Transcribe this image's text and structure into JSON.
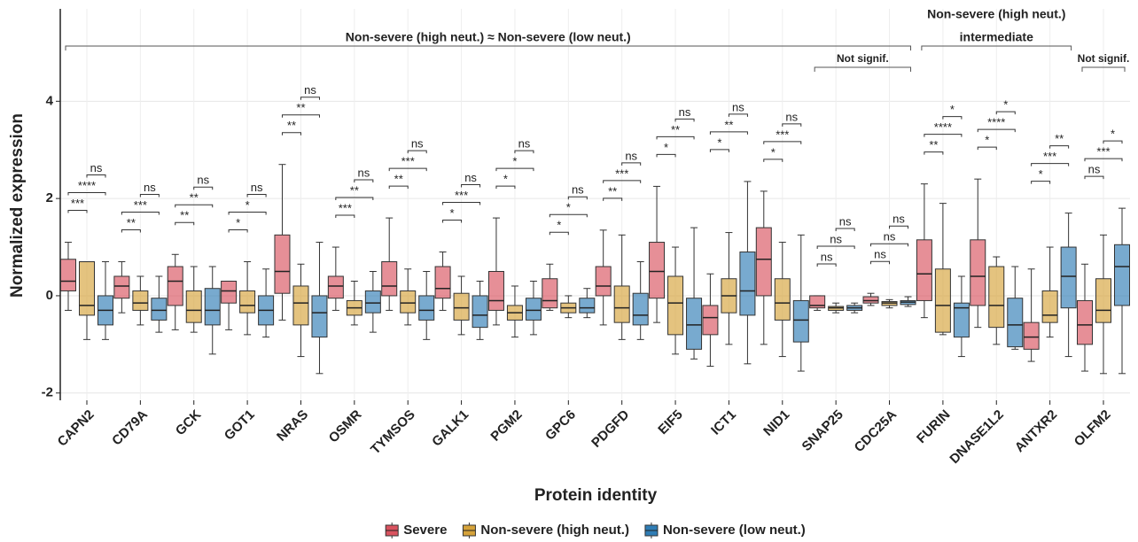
{
  "chart_data": {
    "type": "box",
    "x_label": "Protein identity",
    "y_label": "Normalized expression",
    "categories": [
      "CAPN2",
      "CD79A",
      "GCK",
      "GOT1",
      "NRAS",
      "OSMR",
      "TYMSOS",
      "GALK1",
      "PGM2",
      "GPC6",
      "PDGFD",
      "EIF5",
      "ICT1",
      "NID1",
      "SNAP25",
      "CDC25A",
      "FURIN",
      "DNASE1L2",
      "ANTXR2",
      "OLFM2"
    ],
    "ylim": [
      -2.15,
      5.9
    ],
    "yticks": [
      -2,
      0,
      2,
      4
    ],
    "grid": true,
    "legend": "bottom",
    "series": [
      {
        "name": "Severe",
        "color": "#d9535f",
        "whisker_low": [
          -0.3,
          -0.35,
          -0.7,
          -0.7,
          -0.5,
          -0.3,
          -0.3,
          -0.3,
          -0.6,
          -0.3,
          -0.6,
          -0.55,
          -1.45,
          -1.0,
          -0.3,
          -0.2,
          -0.45,
          -0.65,
          -1.35,
          -1.55
        ],
        "q1": [
          0.1,
          -0.05,
          -0.2,
          -0.15,
          0.05,
          -0.05,
          0.0,
          -0.05,
          -0.3,
          -0.25,
          0.0,
          -0.05,
          -0.8,
          0.0,
          -0.25,
          -0.15,
          -0.1,
          -0.2,
          -1.1,
          -1.0
        ],
        "median": [
          0.3,
          0.2,
          0.3,
          0.1,
          0.5,
          0.2,
          0.2,
          0.15,
          -0.1,
          -0.1,
          0.2,
          0.5,
          -0.45,
          0.75,
          -0.2,
          -0.1,
          0.45,
          0.4,
          -0.85,
          -0.6
        ],
        "q3": [
          0.75,
          0.4,
          0.6,
          0.3,
          1.25,
          0.4,
          0.7,
          0.6,
          0.5,
          0.35,
          0.6,
          1.1,
          -0.2,
          1.4,
          0.0,
          -0.02,
          1.15,
          1.15,
          -0.55,
          -0.1
        ],
        "whisker_high": [
          1.1,
          0.7,
          0.85,
          0.3,
          2.7,
          1.0,
          1.6,
          0.9,
          1.6,
          0.65,
          1.35,
          2.25,
          0.45,
          2.15,
          0.0,
          0.05,
          2.3,
          2.4,
          0.55,
          0.65
        ]
      },
      {
        "name": "Non-severe (high neut.)",
        "color": "#d6a33a",
        "whisker_low": [
          -0.9,
          -0.6,
          -0.75,
          -0.8,
          -1.25,
          -0.6,
          -0.6,
          -0.8,
          -0.85,
          -0.45,
          -0.9,
          -1.2,
          -1.0,
          -1.25,
          -0.35,
          -0.25,
          -0.8,
          -1.0,
          -0.85,
          -1.6
        ],
        "q1": [
          -0.4,
          -0.3,
          -0.55,
          -0.35,
          -0.6,
          -0.4,
          -0.35,
          -0.5,
          -0.5,
          -0.35,
          -0.55,
          -0.8,
          -0.35,
          -0.5,
          -0.3,
          -0.2,
          -0.75,
          -0.65,
          -0.55,
          -0.55
        ],
        "median": [
          -0.2,
          -0.15,
          -0.3,
          -0.2,
          -0.15,
          -0.25,
          -0.15,
          -0.25,
          -0.35,
          -0.25,
          -0.25,
          -0.15,
          0.0,
          -0.15,
          -0.25,
          -0.15,
          -0.2,
          -0.2,
          -0.4,
          -0.3
        ],
        "q3": [
          0.7,
          0.1,
          0.1,
          0.1,
          0.2,
          -0.1,
          0.1,
          0.05,
          -0.2,
          -0.15,
          0.2,
          0.4,
          0.35,
          0.35,
          -0.22,
          -0.12,
          0.55,
          0.6,
          0.1,
          0.35
        ],
        "whisker_high": [
          0.7,
          0.4,
          0.6,
          0.7,
          0.65,
          0.3,
          0.55,
          0.4,
          0.2,
          0.0,
          1.25,
          1.0,
          1.3,
          1.1,
          -0.15,
          -0.08,
          1.9,
          0.8,
          1.0,
          1.25
        ]
      },
      {
        "name": "Non-severe (low neut.)",
        "color": "#2f7db5",
        "whisker_low": [
          -0.9,
          -0.75,
          -1.2,
          -0.85,
          -1.6,
          -0.75,
          -0.9,
          -0.9,
          -0.8,
          -0.45,
          -0.9,
          -1.3,
          -1.4,
          -1.55,
          -0.35,
          -0.22,
          -1.25,
          -1.1,
          -1.25,
          -1.6
        ],
        "q1": [
          -0.6,
          -0.5,
          -0.6,
          -0.6,
          -0.85,
          -0.35,
          -0.5,
          -0.65,
          -0.5,
          -0.35,
          -0.6,
          -1.1,
          -0.4,
          -0.95,
          -0.3,
          -0.18,
          -0.85,
          -1.05,
          -0.25,
          -0.2
        ],
        "median": [
          -0.3,
          -0.3,
          -0.3,
          -0.3,
          -0.35,
          -0.15,
          -0.3,
          -0.4,
          -0.3,
          -0.25,
          -0.4,
          -0.6,
          0.1,
          -0.5,
          -0.25,
          -0.13,
          -0.25,
          -0.6,
          0.4,
          0.6
        ],
        "q3": [
          0.0,
          -0.05,
          0.15,
          0.0,
          0.0,
          0.1,
          0.0,
          0.0,
          -0.05,
          -0.05,
          0.05,
          -0.05,
          0.9,
          -0.1,
          -0.2,
          -0.1,
          -0.15,
          -0.05,
          1.0,
          1.05
        ],
        "whisker_high": [
          0.7,
          0.4,
          0.6,
          0.55,
          1.1,
          0.5,
          0.5,
          0.3,
          0.3,
          0.15,
          0.7,
          1.4,
          2.35,
          1.25,
          -0.15,
          -0.02,
          0.4,
          0.6,
          1.7,
          1.8
        ]
      }
    ],
    "comparisons": [
      [
        "***",
        "****",
        "ns"
      ],
      [
        "**",
        "***",
        "ns"
      ],
      [
        "**",
        "**",
        "ns"
      ],
      [
        "*",
        "*",
        "ns"
      ],
      [
        "**",
        "**",
        "ns"
      ],
      [
        "***",
        "**",
        "ns"
      ],
      [
        "**",
        "***",
        "ns"
      ],
      [
        "*",
        "***",
        "ns"
      ],
      [
        "*",
        "*",
        "ns"
      ],
      [
        "*",
        "*",
        "ns"
      ],
      [
        "**",
        "***",
        "ns"
      ],
      [
        "*",
        "**",
        "ns"
      ],
      [
        "*",
        "**",
        "ns"
      ],
      [
        "*",
        "***",
        "ns"
      ],
      [
        "ns",
        "ns",
        "ns"
      ],
      [
        "ns",
        "ns",
        "ns"
      ],
      [
        "**",
        "****",
        "*"
      ],
      [
        "*",
        "****",
        "*"
      ],
      [
        "*",
        "***",
        "**"
      ],
      [
        "ns",
        "***",
        "*"
      ]
    ],
    "group_annotations": [
      {
        "label": [
          "Non-severe (high neut.) ≈ Non-severe (low neut.)"
        ],
        "categories": [
          "CAPN2",
          "CDC25A"
        ]
      },
      {
        "label": [
          "Not signif."
        ],
        "categories": [
          "SNAP25",
          "CDC25A"
        ]
      },
      {
        "label": [
          "Non-severe (high neut.)",
          "intermediate"
        ],
        "categories": [
          "FURIN",
          "ANTXR2"
        ]
      },
      {
        "label": [
          "Not signif."
        ],
        "categories": [
          "OLFM2",
          "OLFM2"
        ]
      }
    ]
  }
}
